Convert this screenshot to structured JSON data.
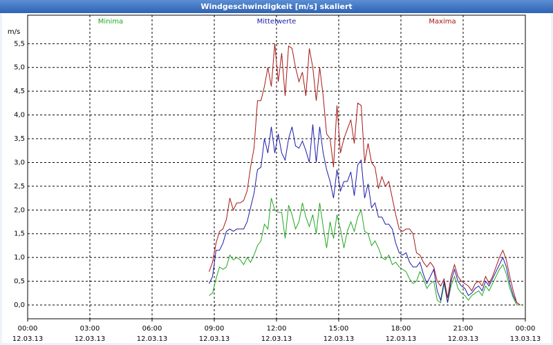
{
  "chart_data": {
    "type": "line",
    "title": "Windgeschwindigkeit [m/s] skaliert",
    "y_label": "m/s",
    "x": [
      525,
      535,
      545,
      555,
      565,
      575,
      585,
      595,
      605,
      615,
      625,
      635,
      645,
      655,
      665,
      675,
      685,
      695,
      705,
      715,
      725,
      735,
      745,
      755,
      765,
      775,
      785,
      795,
      805,
      815,
      825,
      835,
      845,
      855,
      865,
      875,
      885,
      895,
      905,
      915,
      925,
      935,
      945,
      955,
      965,
      975,
      985,
      995,
      1005,
      1015,
      1025,
      1035,
      1045,
      1055,
      1065,
      1075,
      1085,
      1095,
      1105,
      1115,
      1125,
      1135,
      1145,
      1155,
      1165,
      1175,
      1185,
      1195,
      1205,
      1215,
      1225,
      1235,
      1245,
      1255,
      1265,
      1275,
      1285,
      1295,
      1305,
      1315,
      1325,
      1335,
      1345,
      1355,
      1365,
      1375,
      1385,
      1395,
      1405,
      1415,
      1425
    ],
    "series": [
      {
        "name": "Minima",
        "color": "#1fa81f",
        "values": [
          0.2,
          0.25,
          0.55,
          0.8,
          0.75,
          0.8,
          1.05,
          0.95,
          1.0,
          0.95,
          0.85,
          1.0,
          0.9,
          1.05,
          1.25,
          1.35,
          1.7,
          1.6,
          2.25,
          2.0,
          1.95,
          1.95,
          1.4,
          2.1,
          1.9,
          1.6,
          1.75,
          2.15,
          1.85,
          1.65,
          1.9,
          1.5,
          2.15,
          1.65,
          1.2,
          1.75,
          1.4,
          1.9,
          1.6,
          1.2,
          1.55,
          1.75,
          1.55,
          1.85,
          2.0,
          1.55,
          1.5,
          1.25,
          1.35,
          1.2,
          1.0,
          0.95,
          1.05,
          0.85,
          0.9,
          0.8,
          0.75,
          0.7,
          0.55,
          0.45,
          0.5,
          0.7,
          0.55,
          0.35,
          0.45,
          0.5,
          0.1,
          0.05,
          0.45,
          0.05,
          0.4,
          0.6,
          0.35,
          0.25,
          0.2,
          0.1,
          0.2,
          0.25,
          0.3,
          0.2,
          0.4,
          0.3,
          0.45,
          0.6,
          0.75,
          0.85,
          0.65,
          0.35,
          0.15,
          0.0,
          0.0
        ]
      },
      {
        "name": "Mittelwerte",
        "color": "#1a1aa8",
        "values": [
          0.45,
          0.6,
          1.15,
          1.15,
          1.3,
          1.55,
          1.6,
          1.55,
          1.6,
          1.6,
          1.6,
          1.75,
          2.05,
          2.35,
          2.85,
          2.9,
          3.5,
          3.2,
          3.75,
          3.2,
          3.6,
          3.2,
          3.05,
          3.5,
          3.75,
          3.35,
          3.3,
          3.45,
          3.25,
          3.0,
          3.8,
          3.0,
          3.75,
          3.2,
          2.85,
          2.6,
          2.25,
          2.85,
          2.4,
          2.6,
          2.6,
          2.8,
          2.3,
          2.95,
          3.05,
          2.25,
          2.55,
          2.05,
          2.15,
          1.85,
          1.85,
          1.7,
          1.7,
          1.6,
          1.3,
          1.1,
          1.05,
          1.1,
          0.9,
          0.8,
          0.8,
          0.9,
          0.65,
          0.45,
          0.6,
          0.75,
          0.3,
          0.1,
          0.5,
          0.05,
          0.5,
          0.75,
          0.5,
          0.4,
          0.35,
          0.2,
          0.25,
          0.35,
          0.4,
          0.3,
          0.5,
          0.4,
          0.55,
          0.7,
          0.85,
          1.0,
          0.8,
          0.45,
          0.2,
          0.05,
          0.0
        ]
      },
      {
        "name": "Maxima",
        "color": "#a81414",
        "values": [
          0.7,
          0.9,
          1.3,
          1.55,
          1.6,
          1.8,
          2.25,
          2.0,
          2.15,
          2.15,
          2.2,
          2.4,
          2.9,
          3.3,
          4.3,
          4.3,
          4.6,
          5.0,
          4.6,
          5.5,
          4.7,
          5.3,
          4.4,
          5.45,
          5.4,
          5.0,
          4.7,
          4.9,
          4.4,
          5.4,
          5.0,
          4.3,
          5.0,
          4.4,
          3.6,
          3.5,
          2.9,
          4.2,
          3.2,
          3.5,
          3.7,
          3.9,
          3.4,
          4.25,
          4.2,
          3.0,
          3.4,
          3.0,
          2.9,
          2.45,
          2.7,
          2.5,
          2.6,
          2.25,
          1.9,
          1.6,
          1.55,
          1.6,
          1.6,
          1.5,
          1.1,
          1.05,
          0.9,
          0.8,
          0.9,
          0.8,
          0.5,
          0.4,
          0.55,
          0.15,
          0.6,
          0.85,
          0.6,
          0.5,
          0.45,
          0.4,
          0.3,
          0.45,
          0.5,
          0.4,
          0.6,
          0.45,
          0.6,
          0.8,
          1.0,
          1.15,
          0.95,
          0.6,
          0.3,
          0.05,
          0.0
        ]
      }
    ],
    "xlim": [
      0,
      1440
    ],
    "xticks": [
      {
        "value": 0,
        "label": "00:00\n12.03.13"
      },
      {
        "value": 180,
        "label": "03:00\n12.03.13"
      },
      {
        "value": 360,
        "label": "06:00\n12.03.13"
      },
      {
        "value": 540,
        "label": "09:00\n12.03.13"
      },
      {
        "value": 720,
        "label": "12:00\n12.03.13"
      },
      {
        "value": 900,
        "label": "15:00\n12.03.13"
      },
      {
        "value": 1080,
        "label": "18:00\n12.03.13"
      },
      {
        "value": 1260,
        "label": "21:00\n12.03.13"
      },
      {
        "value": 1440,
        "label": "00:00\n13.03.13"
      }
    ],
    "ylim": [
      -0.29,
      6.1
    ],
    "yticks": [
      {
        "value": 0,
        "label": "0,0"
      },
      {
        "value": 0.5,
        "label": "0,5"
      },
      {
        "value": 1,
        "label": "1,0"
      },
      {
        "value": 1.5,
        "label": "1,5"
      },
      {
        "value": 2,
        "label": "2,0"
      },
      {
        "value": 2.5,
        "label": "2,5"
      },
      {
        "value": 3,
        "label": "3,0"
      },
      {
        "value": 3.5,
        "label": "3,5"
      },
      {
        "value": 4,
        "label": "4,0"
      },
      {
        "value": 4.5,
        "label": "4,5"
      },
      {
        "value": 5,
        "label": "5,0"
      },
      {
        "value": 5.5,
        "label": "5,5"
      }
    ],
    "grid": true
  }
}
